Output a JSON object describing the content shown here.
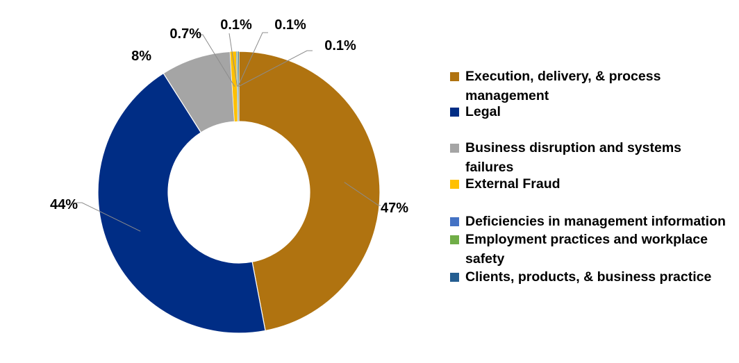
{
  "chart_data": {
    "type": "pie",
    "donut": true,
    "start": "12 o'clock, clockwise",
    "categories": [
      "Execution, delivery, & process management",
      "Legal",
      "Business disruption and systems failures",
      "External Fraud",
      "Deficiencies in management information",
      "Employment practices and workplace safety",
      "Clients, products, & business practice"
    ],
    "values": [
      47,
      44,
      8,
      0.7,
      0.1,
      0.1,
      0.1
    ],
    "data_labels": [
      "47%",
      "44%",
      "8%",
      "0.7%",
      "0.1%",
      "0.1%",
      "0.1%"
    ],
    "colors": [
      "#B07310",
      "#002D85",
      "#A5A5A5",
      "#FFC000",
      "#4472C4",
      "#70AD47",
      "#255E91"
    ],
    "legend_position": "right"
  }
}
